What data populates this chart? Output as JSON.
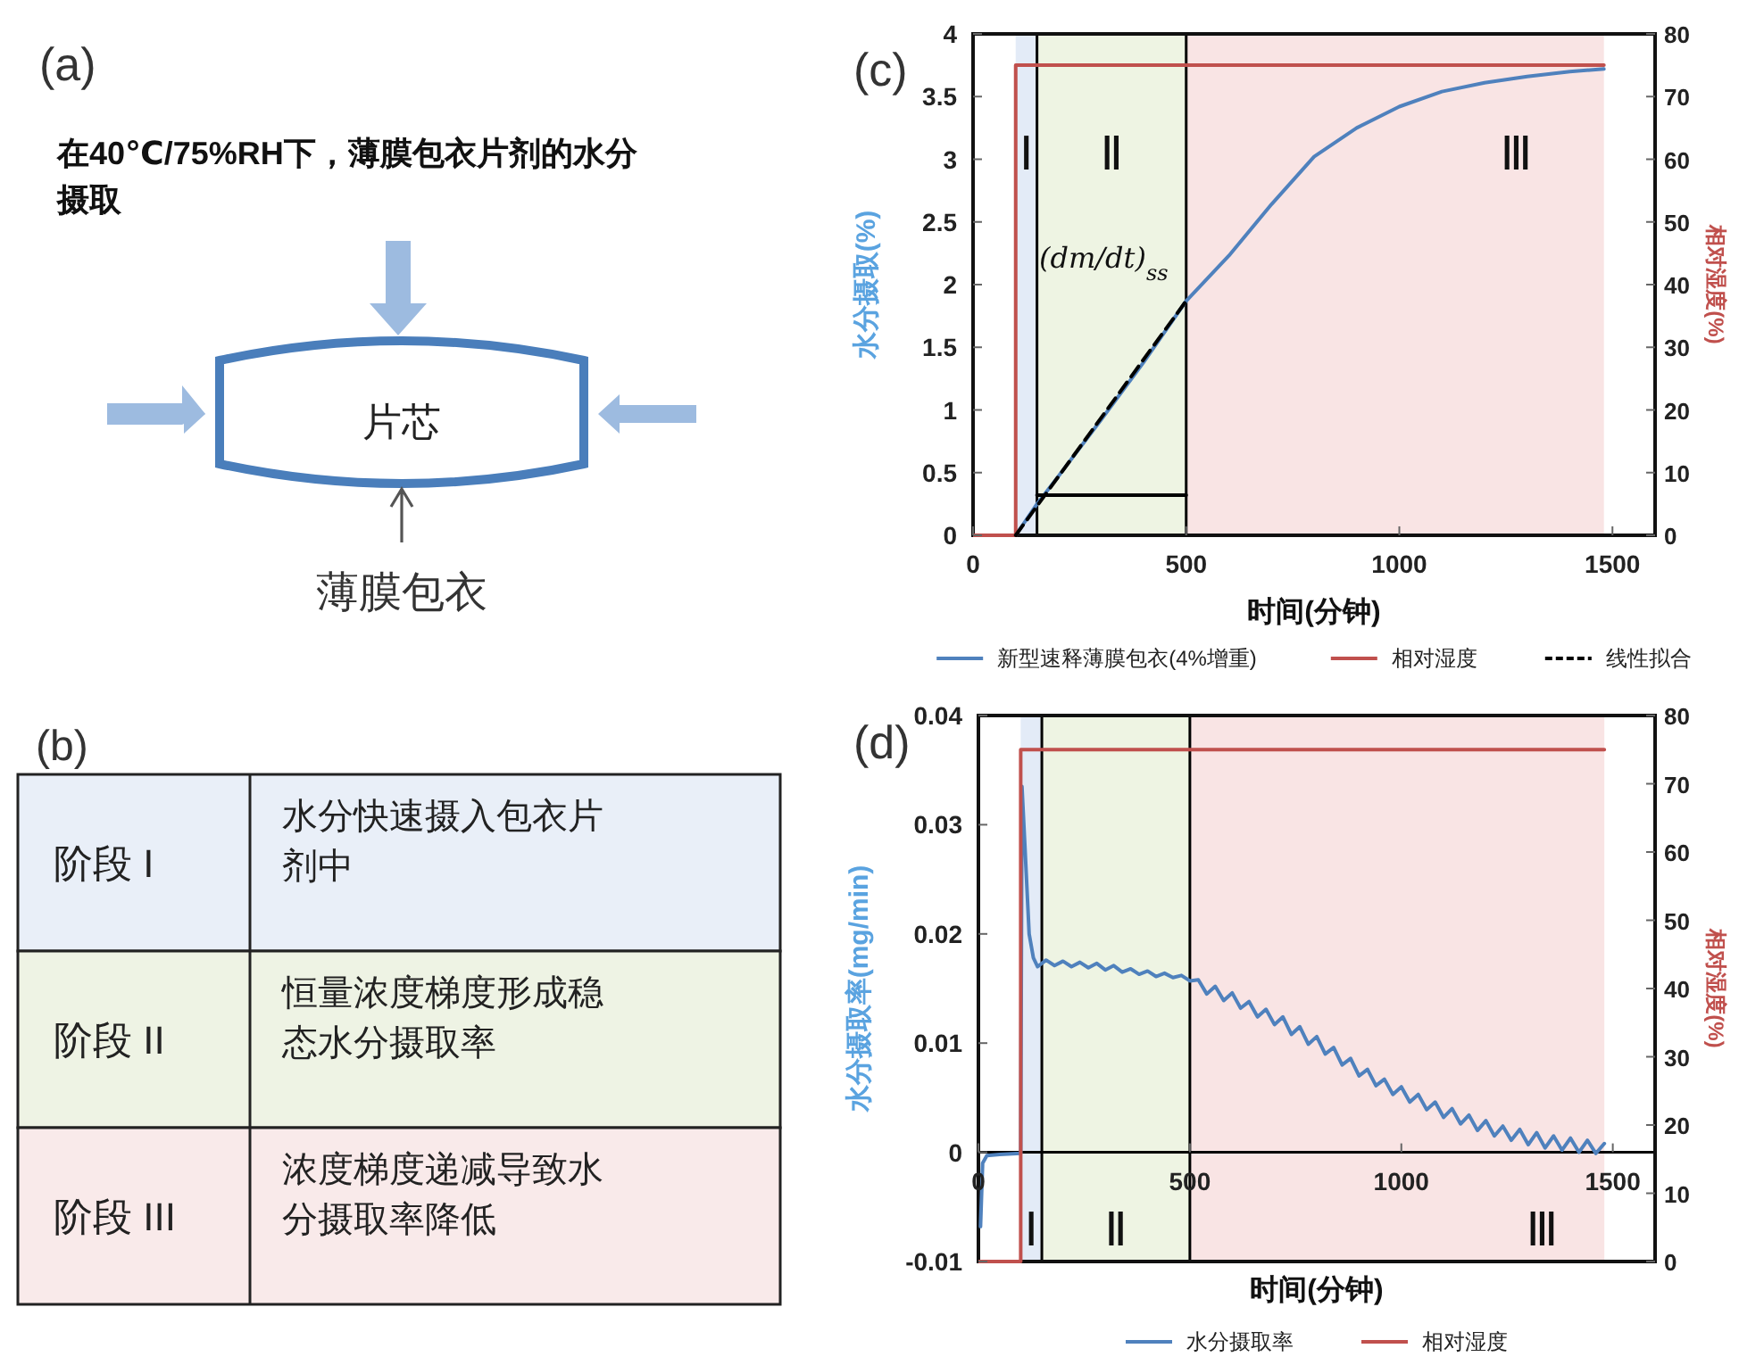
{
  "chart_data": [
    {
      "type": "other",
      "title": "(a)",
      "annotations": [
        "在40℃/75%RH下，薄膜包衣片剂的水分摄取",
        "片芯",
        "薄膜包衣"
      ]
    },
    {
      "type": "other",
      "title": "(b)",
      "annotations": [
        "阶段 I",
        "水分快速摄入包衣片剂中",
        "阶段 II",
        "恒量浓度梯度形成稳态水分摄取率",
        "阶段 III",
        "浓度梯度递减导致水分摄取率降低"
      ]
    },
    {
      "type": "line",
      "title": "(c)",
      "xlabel": "时间(分钟)",
      "ylabel": "水分摄取(%)",
      "y2label": "相对湿度(%)",
      "xlim": [
        0,
        1600
      ],
      "xticks": [
        0,
        500,
        1000,
        1500
      ],
      "ylim": [
        0,
        4
      ],
      "yticks": [
        0,
        0.5,
        1,
        1.5,
        2,
        2.5,
        3,
        3.5,
        4
      ],
      "y2lim": [
        0,
        80
      ],
      "y2ticks": [
        0,
        10,
        20,
        30,
        40,
        50,
        60,
        70,
        80
      ],
      "legend": "bottom",
      "annotations": [
        "(dm/dt)$_{ss}$"
      ],
      "bands": [
        {
          "axis": "x",
          "from": 100,
          "to": 150,
          "label": "Ⅰ",
          "color": "#e3ebf7"
        },
        {
          "axis": "x",
          "from": 150,
          "to": 500,
          "label": "Ⅱ",
          "color": "#eef4e3"
        },
        {
          "axis": "x",
          "from": 500,
          "to": 1480,
          "label": "Ⅲ",
          "color": "#f9e4e4"
        }
      ],
      "ref_lines": [
        {
          "axis": "x",
          "value": 150,
          "color": "#000000"
        },
        {
          "axis": "x",
          "value": 500,
          "color": "#000000"
        }
      ],
      "series": [
        {
          "name": "新型速释薄膜包衣(4%增重)",
          "color": "#4f81bd",
          "x": [
            100,
            150,
            200,
            300,
            400,
            500,
            600,
            700,
            800,
            900,
            1000,
            1100,
            1200,
            1300,
            1400,
            1480
          ],
          "values": [
            0,
            0.25,
            0.47,
            0.92,
            1.38,
            1.87,
            2.23,
            2.64,
            3.02,
            3.25,
            3.42,
            3.54,
            3.61,
            3.66,
            3.7,
            3.72
          ]
        },
        {
          "name": "相对湿度",
          "color": "#c0504d",
          "axis": "y2",
          "x": [
            0,
            100,
            100,
            1480
          ],
          "values": [
            0,
            0,
            75,
            75
          ]
        },
        {
          "name": "线性拟合",
          "color": "#000000",
          "line_style": "dashed",
          "x": [
            100,
            500
          ],
          "values": [
            0,
            1.87
          ]
        },
        {
          "color": "#000000",
          "x": [
            150,
            500
          ],
          "values": [
            0.32,
            0.32
          ]
        }
      ]
    },
    {
      "type": "line",
      "title": "(d)",
      "xlabel": "时间(分钟)",
      "ylabel": "水分摄取率(mg/min)",
      "y2label": "相对湿度(%)",
      "xlim": [
        0,
        1600
      ],
      "xticks": [
        0,
        500,
        1000,
        1500
      ],
      "ylim": [
        -0.01,
        0.04
      ],
      "yticks": [
        -0.01,
        0,
        0.01,
        0.02,
        0.03,
        0.04
      ],
      "y2lim": [
        0,
        80
      ],
      "y2ticks": [
        0,
        10,
        20,
        30,
        40,
        50,
        60,
        70,
        80
      ],
      "legend": "bottom",
      "bands": [
        {
          "axis": "x",
          "from": 100,
          "to": 150,
          "label": "Ⅰ",
          "color": "#e3ebf7"
        },
        {
          "axis": "x",
          "from": 150,
          "to": 500,
          "label": "Ⅱ",
          "color": "#eef4e3"
        },
        {
          "axis": "x",
          "from": 500,
          "to": 1480,
          "label": "Ⅲ",
          "color": "#f9e4e4"
        }
      ],
      "ref_lines": [
        {
          "axis": "x",
          "value": 150,
          "color": "#000000"
        },
        {
          "axis": "x",
          "value": 500,
          "color": "#000000"
        }
      ],
      "series": [
        {
          "name": "水分摄取率",
          "color": "#4f81bd",
          "x": [
            5,
            10,
            20,
            50,
            100,
            103,
            110,
            120,
            130,
            140,
            160,
            180,
            200,
            220,
            240,
            260,
            280,
            300,
            320,
            340,
            360,
            380,
            400,
            420,
            440,
            460,
            480,
            500,
            520,
            540,
            560,
            580,
            600,
            620,
            640,
            660,
            680,
            700,
            720,
            740,
            760,
            780,
            800,
            820,
            840,
            860,
            880,
            900,
            920,
            940,
            960,
            980,
            1000,
            1020,
            1040,
            1060,
            1080,
            1100,
            1120,
            1140,
            1160,
            1180,
            1200,
            1220,
            1240,
            1260,
            1280,
            1300,
            1320,
            1340,
            1360,
            1380,
            1400,
            1420,
            1440,
            1460,
            1480
          ],
          "values": [
            -0.0068,
            -0.001,
            -0.0003,
            -0.0002,
            -0.0001,
            0.0335,
            0.028,
            0.02,
            0.0178,
            0.017,
            0.0176,
            0.0171,
            0.0175,
            0.017,
            0.0174,
            0.0169,
            0.0173,
            0.0167,
            0.0171,
            0.0165,
            0.0168,
            0.0163,
            0.0166,
            0.0161,
            0.0164,
            0.016,
            0.0162,
            0.0157,
            0.0158,
            0.0145,
            0.0152,
            0.0139,
            0.0146,
            0.0132,
            0.0138,
            0.0124,
            0.0131,
            0.0117,
            0.0124,
            0.0108,
            0.0115,
            0.0099,
            0.0106,
            0.009,
            0.0096,
            0.008,
            0.0086,
            0.007,
            0.0076,
            0.0061,
            0.0067,
            0.0053,
            0.006,
            0.0046,
            0.0053,
            0.0039,
            0.0046,
            0.0032,
            0.004,
            0.0026,
            0.0034,
            0.002,
            0.0029,
            0.0015,
            0.0024,
            0.0011,
            0.0021,
            0.0007,
            0.0018,
            0.0004,
            0.0015,
            0.0002,
            0.0013,
            0,
            0.0011,
            -0.0001,
            0.0008
          ]
        },
        {
          "name": "相对湿度",
          "color": "#c0504d",
          "axis": "y2",
          "x": [
            0,
            100,
            100,
            1480
          ],
          "values": [
            0,
            0,
            75,
            75
          ]
        }
      ]
    }
  ]
}
